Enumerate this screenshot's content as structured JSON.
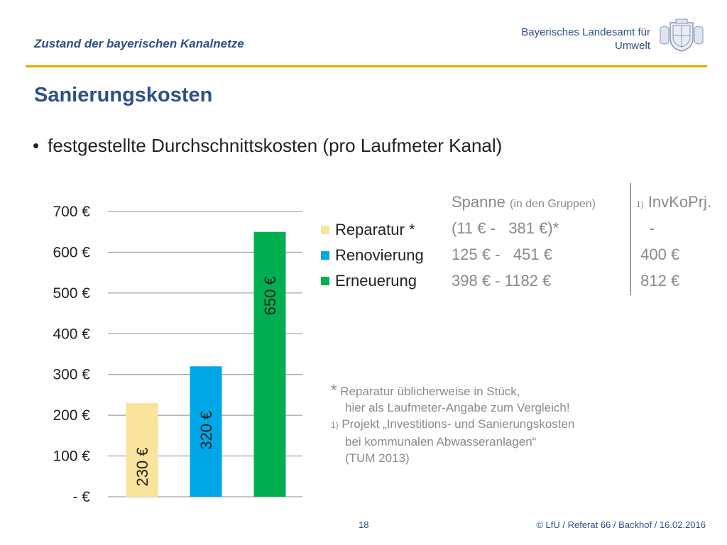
{
  "header": {
    "title": "Zustand der bayerischen Kanalnetze",
    "agency_line1": "Bayerisches Landesamt für",
    "agency_line2": "Umwelt",
    "crest_icon": "bavarian-coat-of-arms-icon",
    "accent_color": "#f0a500",
    "title_color": "#2f4f86"
  },
  "slide": {
    "title": "Sanierungskosten",
    "bullet": "festgestellte Durchschnittskosten (pro Laufmeter Kanal)"
  },
  "chart_data": {
    "type": "bar",
    "categories": [
      "Reparatur *",
      "Renovierung",
      "Erneuerung"
    ],
    "values": [
      230,
      320,
      650
    ],
    "data_labels": [
      "230 €",
      "320 €",
      "650 €"
    ],
    "colors": [
      "#fae39a",
      "#00a7e6",
      "#00b050"
    ],
    "ylim": [
      0,
      700
    ],
    "yticks": [
      0,
      100,
      200,
      300,
      400,
      500,
      600,
      700
    ],
    "ytick_labels": [
      "-   €",
      "100 €",
      "200 €",
      "300 €",
      "400 €",
      "500 €",
      "600 €",
      "700 €"
    ],
    "grid": true,
    "legend_position": "right"
  },
  "ranges": {
    "header": "Spanne",
    "header_suffix": "(in den Gruppen)",
    "rows": [
      "(11 € -   381 €)*",
      "125 € -   451 €",
      "398 € - 1182 €"
    ]
  },
  "invkoprj": {
    "footnote_mark": "1)",
    "header": "InvKoPrj.",
    "rows": [
      "-",
      "400 €",
      "812 €"
    ]
  },
  "notes": {
    "star": "*",
    "line1": "Reparatur üblicherweise in Stück,",
    "line2": "hier als Laufmeter-Angabe zum Vergleich!",
    "mark": "1)",
    "line3": "Projekt „Investitions- und Sanierungskosten",
    "line4": "bei kommunalen Abwasseranlagen“",
    "line5": "(TUM 2013)"
  },
  "footer": {
    "page": "18",
    "copyright": "© LfU / Referat 66 / Backhof / 16.02.2016"
  }
}
